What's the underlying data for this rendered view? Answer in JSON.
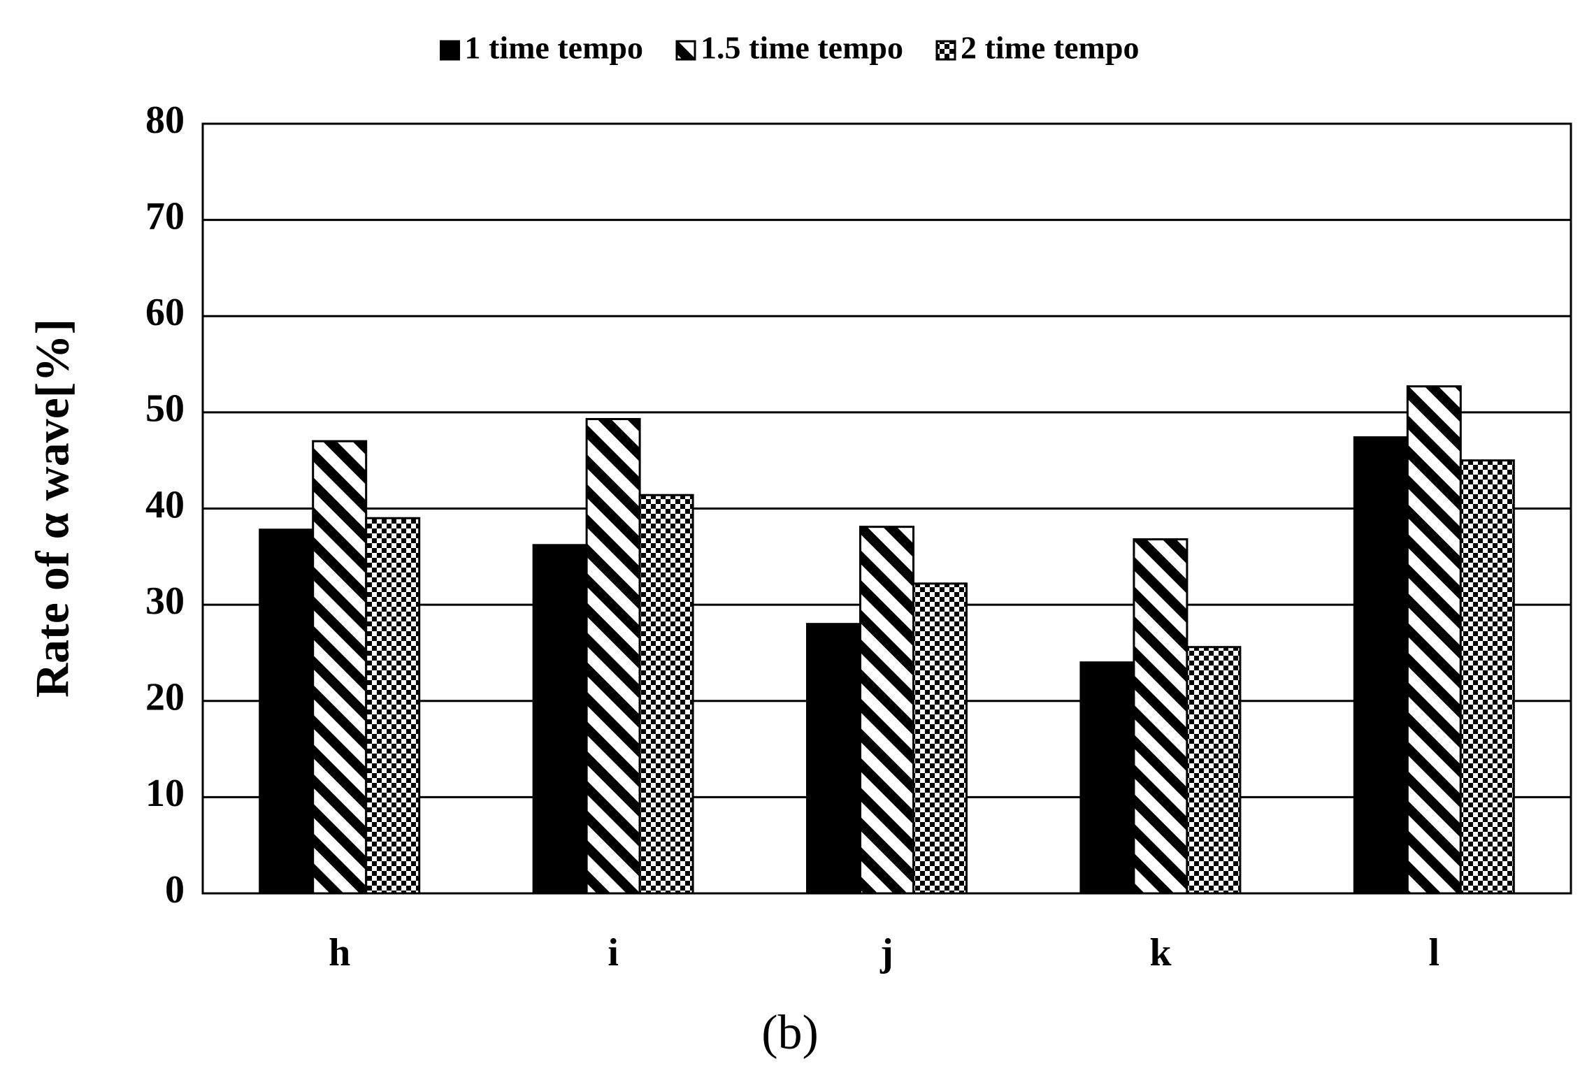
{
  "chart_data": {
    "type": "bar",
    "caption": "(b)",
    "y_label": "Rate of α wave[%]",
    "categories": [
      "h",
      "i",
      "j",
      "k",
      "l"
    ],
    "series": [
      {
        "name": "1 time tempo",
        "color": "#000000",
        "pattern": "solid",
        "values": [
          37.8,
          36.2,
          28,
          24,
          47.4
        ]
      },
      {
        "name": "1.5 time tempo",
        "color": "#000000",
        "pattern": "diagonal",
        "values": [
          47,
          49.3,
          38.1,
          36.8,
          52.7
        ]
      },
      {
        "name": "2 time tempo",
        "color": "#000000",
        "pattern": "checker",
        "values": [
          39,
          41.4,
          32.2,
          25.6,
          45
        ]
      }
    ],
    "ylim": [
      0,
      80
    ],
    "yticks": [
      0,
      10,
      20,
      30,
      40,
      50,
      60,
      70,
      80
    ],
    "grid": true,
    "legend": "top"
  }
}
